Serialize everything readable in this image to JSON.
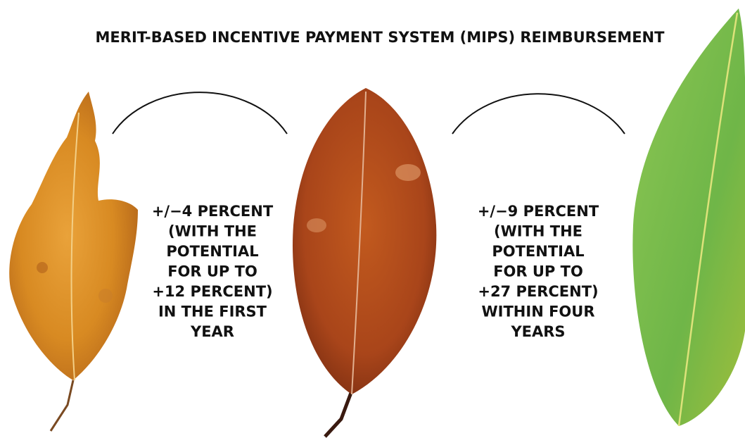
{
  "header": {
    "title": "MERIT-BASED INCENTIVE PAYMENT SYSTEM (MIPS) REIMBURSEMENT"
  },
  "captions": [
    {
      "lines": [
        "+/−4 PERCENT",
        "(WITH THE",
        "POTENTIAL",
        "FOR UP TO",
        "+12 PERCENT)",
        "IN THE FIRST",
        "YEAR"
      ]
    },
    {
      "lines": [
        "+/−9 PERCENT",
        "(WITH THE",
        "POTENTIAL",
        "FOR UP TO",
        "+27 PERCENT)",
        "WITHIN FOUR",
        "YEARS"
      ]
    }
  ]
}
